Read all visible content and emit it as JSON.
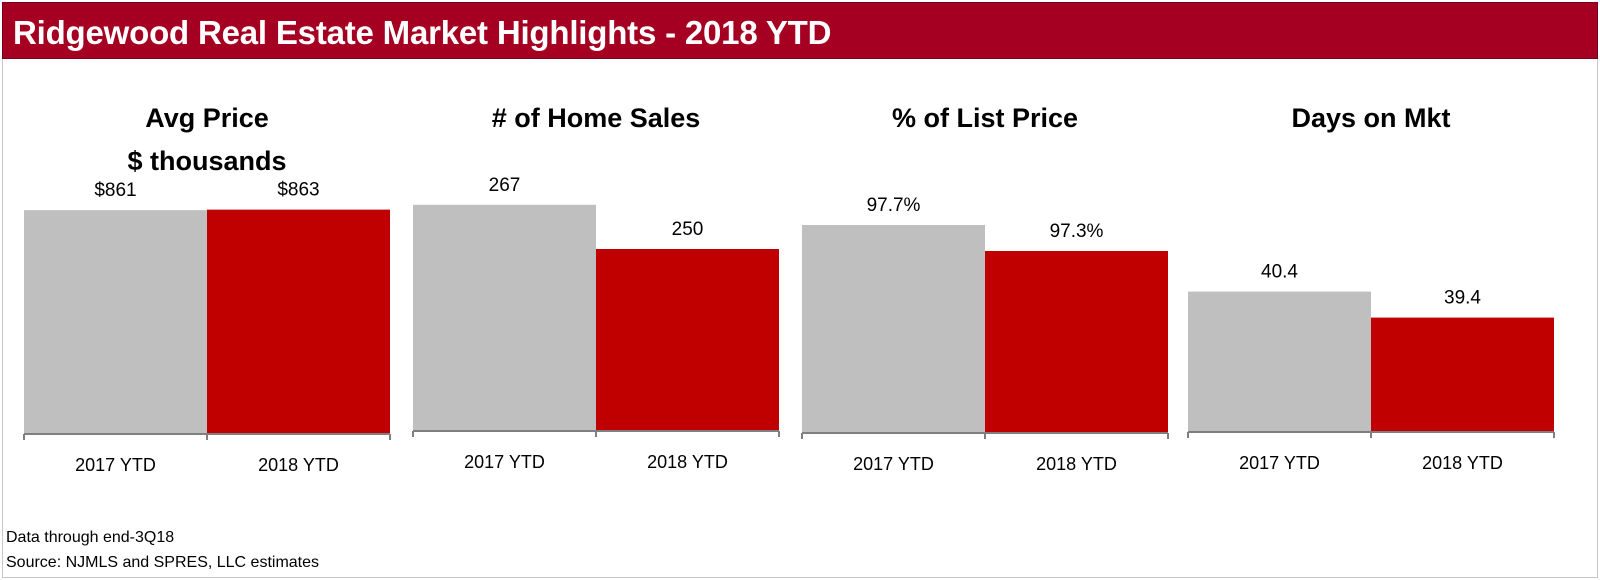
{
  "header": {
    "title": "Ridgewood Real Estate Market Highlights - 2018 YTD"
  },
  "notes": {
    "line1": "Data through end-3Q18",
    "line2": "Source: NJMLS and SPRES, LLC estimates"
  },
  "colors": {
    "banner": "#a50021",
    "bar_2017": "#bfbfbf",
    "bar_2018": "#c00000",
    "axis": "#7f7f7f"
  },
  "chart_data": [
    {
      "type": "bar",
      "title": "Avg Price",
      "subtitle": "$ thousands",
      "categories": [
        "2017 YTD",
        "2018 YTD"
      ],
      "values": [
        861,
        863
      ],
      "data_labels": [
        "$861",
        "$863"
      ],
      "ylim": [
        0,
        1000
      ],
      "grid": false,
      "legend": "none"
    },
    {
      "type": "bar",
      "title": "# of Home Sales",
      "subtitle": "",
      "categories": [
        "2017 YTD",
        "2018 YTD"
      ],
      "values": [
        267,
        250
      ],
      "data_labels": [
        "267",
        "250"
      ],
      "ylim": [
        180,
        280
      ],
      "grid": false,
      "legend": "none"
    },
    {
      "type": "bar",
      "title": "% of List Price",
      "subtitle": "",
      "categories": [
        "2017 YTD",
        "2018 YTD"
      ],
      "values": [
        97.7,
        97.3
      ],
      "data_labels": [
        "97.7%",
        "97.3%"
      ],
      "ylim": [
        94.5,
        98.5
      ],
      "grid": false,
      "legend": "none"
    },
    {
      "type": "bar",
      "title": "Days on Mkt",
      "subtitle": "",
      "categories": [
        "2017 YTD",
        "2018 YTD"
      ],
      "values": [
        40.4,
        39.4
      ],
      "data_labels": [
        "40.4",
        "39.4"
      ],
      "ylim": [
        35,
        45
      ],
      "grid": false,
      "legend": "none"
    }
  ]
}
